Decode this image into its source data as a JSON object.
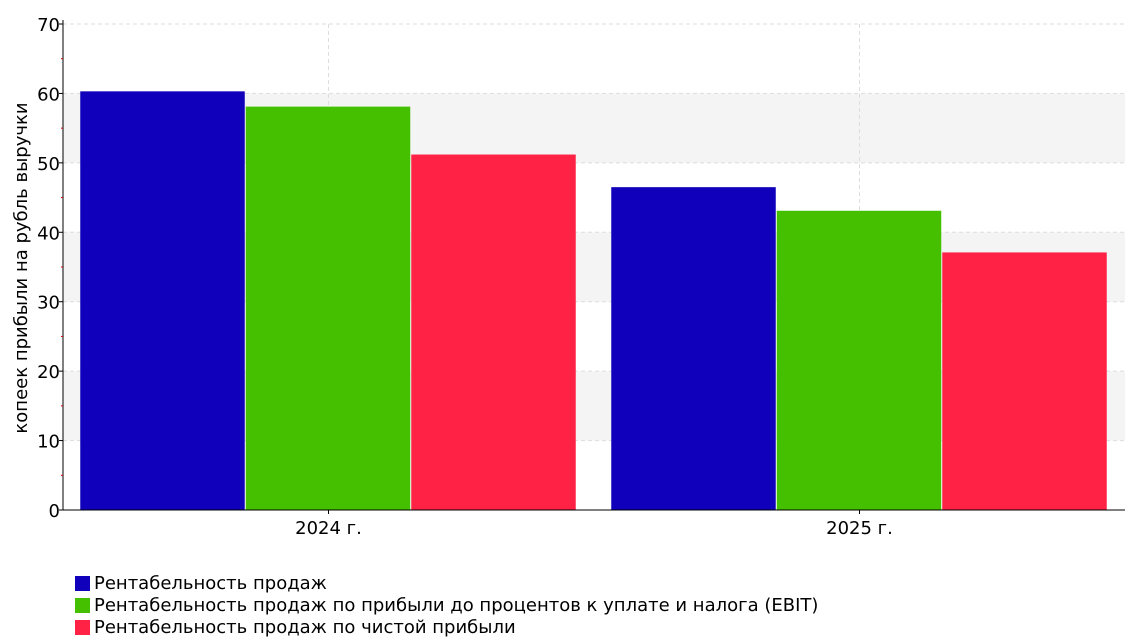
{
  "chart_data": {
    "type": "bar",
    "title": "",
    "xlabel": "",
    "ylabel": "копеек прибыли на рубль выручки",
    "ylim": [
      0,
      70
    ],
    "yticks": [
      0,
      10,
      20,
      30,
      40,
      50,
      60,
      70
    ],
    "categories": [
      "2024 г.",
      "2025 г."
    ],
    "series": [
      {
        "name": "Рентабельность продаж",
        "color": "#1100bb",
        "values": [
          60.3,
          46.5
        ]
      },
      {
        "name": "Рентабельность продаж по прибыли до процентов к уплате и налога (EBIT)",
        "color": "#44c000",
        "values": [
          58.1,
          43.1
        ]
      },
      {
        "name": "Рентабельность продаж по чистой прибыли",
        "color": "#ff2244",
        "values": [
          51.2,
          37.1
        ]
      }
    ],
    "grid": true,
    "banded_background": true,
    "legend_position": "bottom-left"
  }
}
